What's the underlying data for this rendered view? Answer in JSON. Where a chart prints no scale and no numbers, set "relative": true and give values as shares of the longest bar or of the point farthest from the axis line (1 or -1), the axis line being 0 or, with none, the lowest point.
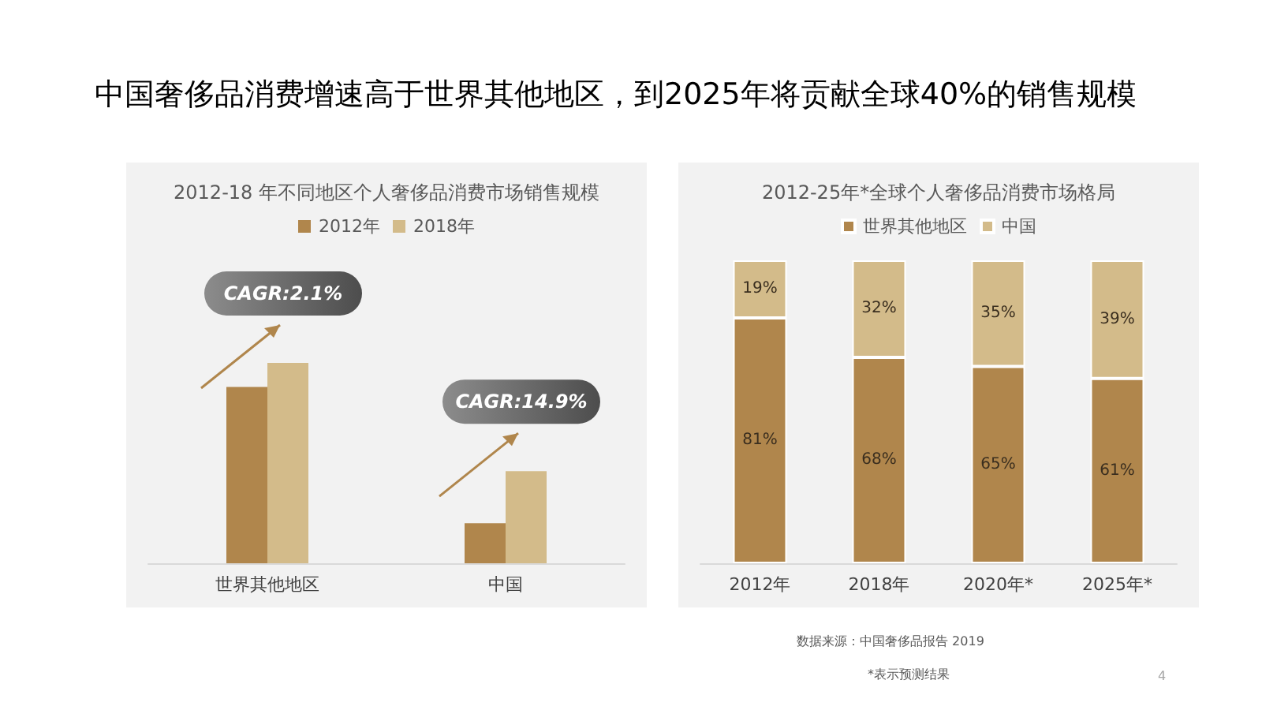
{
  "chart_data": [
    {
      "type": "bar",
      "title": "中国奢侈品消费增速高于世界其他地区，到2025年将贡献全球40%的销售规模",
      "subtitle": "2012-18 年不同地区个人奢侈品消费市场销售规模",
      "categories": [
        "世界其他地区",
        "中国"
      ],
      "relative": true,
      "legend": "top",
      "series": [
        {
          "name": "2012年",
          "color": "#b0864c",
          "values": [
            0.88,
            0.2
          ]
        },
        {
          "name": "2018年",
          "color": "#d3bb8a",
          "values": [
            1,
            0.46
          ]
        }
      ],
      "annotations": [
        "CAGR:2.1%",
        "CAGR:14.9%"
      ]
    },
    {
      "type": "bar",
      "subtitle": "2012-25年*全球个人奢侈品消费市场格局",
      "categories": [
        "2012年",
        "2018年",
        "2020年*",
        "2025年*"
      ],
      "stacked": true,
      "legend": "top",
      "series": [
        {
          "name": "世界其他地区",
          "color": "#b0864c",
          "values": [
            81,
            68,
            65,
            61
          ],
          "value_labels": [
            "81%",
            "68%",
            "65%",
            "61%"
          ]
        },
        {
          "name": "中国",
          "color": "#d3bb8a",
          "values": [
            19,
            32,
            35,
            39
          ],
          "value_labels": [
            "19%",
            "32%",
            "35%",
            "39%"
          ]
        }
      ],
      "annotations": [
        "数据来源：中国奢侈品报告 2019",
        "*表示预测结果",
        "4"
      ]
    }
  ]
}
